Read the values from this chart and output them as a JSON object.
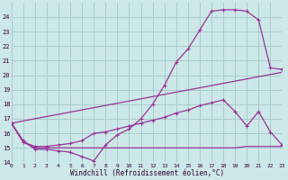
{
  "xlabel": "Windchill (Refroidissement éolien,°C)",
  "background_color": "#cce8e8",
  "grid_color": "#aacccc",
  "line_color": "#993399",
  "xlim": [
    0,
    23
  ],
  "ylim": [
    14,
    25
  ],
  "yticks": [
    14,
    15,
    16,
    17,
    18,
    19,
    20,
    21,
    22,
    23,
    24
  ],
  "xticks": [
    0,
    1,
    2,
    3,
    4,
    5,
    6,
    7,
    8,
    9,
    10,
    11,
    12,
    13,
    14,
    15,
    16,
    17,
    18,
    19,
    20,
    21,
    22,
    23
  ],
  "line1_x": [
    0,
    1,
    2,
    3,
    4,
    5,
    6,
    7,
    8,
    9,
    10,
    11,
    12,
    13,
    14,
    15,
    16,
    17,
    18,
    19,
    20,
    21,
    22,
    23
  ],
  "line1_y": [
    16.7,
    15.5,
    14.9,
    14.9,
    14.8,
    14.7,
    14.4,
    14.1,
    15.2,
    15.9,
    16.3,
    17.0,
    18.0,
    19.3,
    20.9,
    21.8,
    23.1,
    24.4,
    24.5,
    24.5,
    24.4,
    23.8,
    20.5,
    20.4
  ],
  "line2_x": [
    0,
    1,
    2,
    3,
    4,
    5,
    6,
    7,
    8,
    9,
    10,
    11,
    12,
    13,
    14,
    15,
    16,
    17,
    18,
    19,
    20,
    21,
    22,
    23
  ],
  "line2_y": [
    16.7,
    15.4,
    15.0,
    15.0,
    15.0,
    15.0,
    15.0,
    15.0,
    15.0,
    15.0,
    15.0,
    15.0,
    15.0,
    15.0,
    15.0,
    15.0,
    15.0,
    15.0,
    15.0,
    15.0,
    15.1,
    15.1,
    15.1,
    15.1
  ],
  "line3_x": [
    0,
    1,
    2,
    3,
    4,
    5,
    6,
    7,
    8,
    9,
    10,
    11,
    12,
    13,
    14,
    15,
    16,
    17,
    18,
    19,
    20,
    21,
    22,
    23
  ],
  "line3_y": [
    16.7,
    15.4,
    15.1,
    15.1,
    15.2,
    15.3,
    15.5,
    16.0,
    16.1,
    16.3,
    16.5,
    16.7,
    16.9,
    17.1,
    17.4,
    17.6,
    17.9,
    18.1,
    18.3,
    17.5,
    16.5,
    17.5,
    16.1,
    15.2
  ],
  "line4_x": [
    0,
    23
  ],
  "line4_y": [
    16.7,
    20.2
  ]
}
